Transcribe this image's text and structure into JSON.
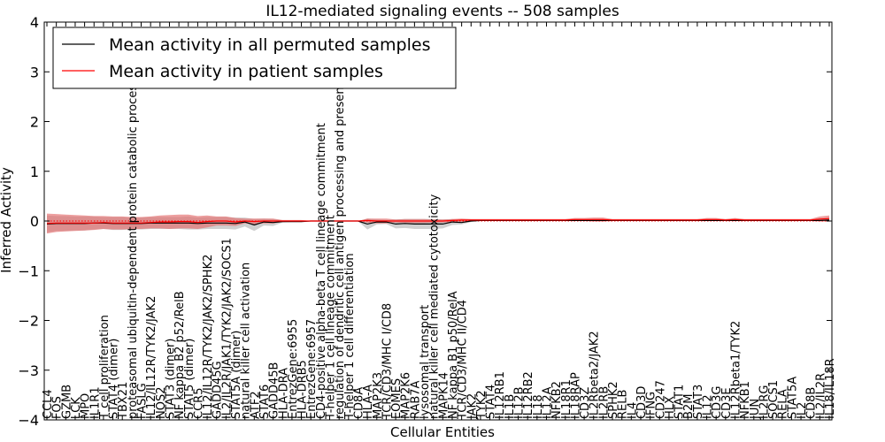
{
  "chart_data": {
    "type": "line",
    "title": "IL12-mediated signaling events -- 508 samples",
    "xlabel": "Cellular Entities",
    "ylabel": "Inferred Activity",
    "ylim": [
      -4,
      4
    ],
    "yticks": [
      -4,
      -3,
      -2,
      -1,
      0,
      1,
      2,
      3,
      4
    ],
    "ytick_labels": [
      "−4",
      "−3",
      "−2",
      "−1",
      "0",
      "1",
      "2",
      "3",
      "4"
    ],
    "legend": {
      "placement": "top-left"
    },
    "categories": [
      "CCL4",
      "FOS",
      "GZMB",
      "LCK",
      "MPO",
      "IL1R1",
      "T cell proliferation",
      "STAT4 (dimer)",
      "TBX21",
      "proteasomal ubiquitin-dependent protein catabolic process",
      "FASLG",
      "IL12/IL12R/TYK2/JAK2",
      "NOS2",
      "STAT3 (dimer)",
      "NF kappa B2 p52/RelB",
      "STAT5 (dimer)",
      "CCR5",
      "IL12/IL12R/TYK2/JAK2/SPHK2",
      "GADD45G",
      "IL2/IL2R/JAK1/TYK2/JAK2/SOCS1",
      "STAT5A (dimer)",
      "natural killer cell activation",
      "ATF2",
      "STAT6",
      "GADD45B",
      "HLA-DRA",
      "EntrezGene:6955",
      "HLA-DRB5",
      "EntrezGene:6957",
      "CD4-positive alpha-beta T cell lineage commitment",
      "T-helper 1 cell lineage commitment",
      "regulation of dendritic cell antigen processing and presentation",
      "T-helper 1 cell differentiation",
      "CD8A",
      "HLA-A",
      "MAP2K3",
      "TCR/CD3/MHC I/CD8",
      "EOMES",
      "MAP2K6",
      "RAB7A",
      "lysosomal transport",
      "natural killer cell mediated cytotoxicity",
      "MAPK14",
      "NF kappa B1 p50/RelA",
      "TCR/CD3/MHC II/CD4",
      "JAK2",
      "TYK2",
      "STAT4",
      "IL12RB1",
      "IL1B",
      "IL12B",
      "IL12RB2",
      "IL18",
      "IL12A",
      "NFKB2",
      "IL18R1",
      "IL18RAP",
      "CD3Z",
      "IL2Rbeta2/JAK2",
      "IL2RB",
      "SPHK2",
      "RELB",
      "IL4",
      "CD3D",
      "IFNG",
      "CD247",
      "HLX",
      "STAT1",
      "B2M",
      "STAT3",
      "IL12",
      "CD3G",
      "CD3E",
      "IL12Rbeta1/TYK2",
      "NFKB1",
      "JUN",
      "IL2RG",
      "SOCS1",
      "RELA",
      "STAT5A",
      "IL2",
      "CD8B",
      "IL2/IL2R",
      "IL18/IL18R"
    ],
    "series": [
      {
        "name": "Mean activity in all permuted samples",
        "color": "#000000",
        "values": [
          -0.06,
          -0.05,
          -0.05,
          -0.05,
          -0.05,
          -0.04,
          -0.04,
          -0.05,
          -0.05,
          -0.05,
          -0.05,
          -0.04,
          -0.04,
          -0.04,
          -0.04,
          -0.04,
          -0.05,
          -0.04,
          -0.04,
          -0.04,
          -0.05,
          -0.02,
          -0.08,
          -0.02,
          -0.03,
          -0.01,
          -0.01,
          -0.01,
          0,
          0,
          0,
          0,
          0,
          0,
          -0.06,
          -0.02,
          -0.02,
          -0.06,
          -0.05,
          -0.06,
          -0.06,
          -0.06,
          -0.06,
          -0.02,
          -0.03,
          0,
          0.01,
          0.01,
          0.01,
          0.01,
          0.01,
          0.01,
          0.01,
          0.01,
          0.01,
          0.01,
          0.01,
          0.01,
          0.01,
          0.01,
          0.01,
          0.01,
          0.01,
          0.01,
          0.01,
          0.01,
          0.01,
          0.01,
          0.01,
          0.01,
          0.01,
          0.01,
          0.01,
          0.01,
          0.01,
          0.01,
          0.01,
          0.01,
          0.01,
          0.01,
          0.01,
          0.01,
          0.01,
          0.02
        ],
        "band": [
          0.17,
          0.15,
          0.15,
          0.14,
          0.14,
          0.13,
          0.12,
          0.13,
          0.13,
          0.12,
          0.12,
          0.12,
          0.12,
          0.12,
          0.12,
          0.13,
          0.12,
          0.12,
          0.12,
          0.12,
          0.12,
          0.09,
          0.12,
          0.07,
          0.07,
          0.02,
          0.01,
          0.01,
          0,
          0,
          0,
          0,
          0,
          0,
          0.11,
          0.05,
          0.04,
          0.09,
          0.09,
          0.1,
          0.1,
          0.1,
          0.09,
          0.06,
          0.04,
          0.02,
          0.01,
          0.01,
          0.01,
          0.01,
          0.01,
          0.01,
          0.01,
          0.01,
          0.01,
          0.01,
          0.01,
          0.01,
          0.01,
          0.01,
          0.01,
          0.01,
          0.01,
          0.01,
          0.01,
          0.01,
          0.01,
          0.01,
          0.01,
          0.01,
          0.01,
          0.01,
          0.01,
          0.01,
          0.01,
          0.01,
          0.01,
          0.01,
          0.01,
          0.01,
          0.01,
          0.01,
          0.01,
          0.02
        ]
      },
      {
        "name": "Mean activity in patient samples",
        "color": "#ff0000",
        "fill": "#e36b6b",
        "values": [
          -0.05,
          -0.04,
          -0.04,
          -0.04,
          -0.04,
          -0.04,
          -0.03,
          -0.04,
          -0.04,
          -0.04,
          -0.04,
          -0.03,
          -0.02,
          -0.02,
          -0.01,
          -0.01,
          -0.03,
          -0.01,
          0,
          0,
          -0.02,
          0,
          -0.01,
          0,
          0,
          0,
          0,
          0,
          0,
          0,
          0,
          0,
          0,
          0,
          0.01,
          0,
          0,
          0,
          0,
          0,
          0,
          0,
          0,
          0.01,
          0.02,
          0.02,
          0.02,
          0.02,
          0.02,
          0.02,
          0.02,
          0.02,
          0.02,
          0.02,
          0.02,
          0.02,
          0.03,
          0.03,
          0.03,
          0.03,
          0.02,
          0.02,
          0.02,
          0.02,
          0.02,
          0.02,
          0.02,
          0.02,
          0.02,
          0.02,
          0.03,
          0.03,
          0.02,
          0.03,
          0.02,
          0.02,
          0.02,
          0.02,
          0.02,
          0.02,
          0.02,
          0.02,
          0.04,
          0.05
        ],
        "band": [
          0.2,
          0.18,
          0.17,
          0.16,
          0.15,
          0.14,
          0.13,
          0.13,
          0.13,
          0.12,
          0.12,
          0.12,
          0.13,
          0.14,
          0.14,
          0.14,
          0.13,
          0.12,
          0.09,
          0.09,
          0.08,
          0.05,
          0.06,
          0.05,
          0.05,
          0.02,
          0.02,
          0.02,
          0,
          0,
          0,
          0,
          0,
          0,
          0.04,
          0.05,
          0.05,
          0.03,
          0.04,
          0.04,
          0.04,
          0.03,
          0.03,
          0.03,
          0.03,
          0.02,
          0.02,
          0.02,
          0.02,
          0.02,
          0.02,
          0.02,
          0.02,
          0.02,
          0.02,
          0.02,
          0.03,
          0.03,
          0.04,
          0.04,
          0.02,
          0.02,
          0.02,
          0.02,
          0.02,
          0.02,
          0.02,
          0.02,
          0.02,
          0.02,
          0.03,
          0.03,
          0.02,
          0.03,
          0.02,
          0.02,
          0.02,
          0.02,
          0.02,
          0.02,
          0.02,
          0.02,
          0.05,
          0.06
        ]
      }
    ],
    "reference_line": {
      "y": 0,
      "style": "dotted",
      "color": "#ff0000"
    }
  }
}
